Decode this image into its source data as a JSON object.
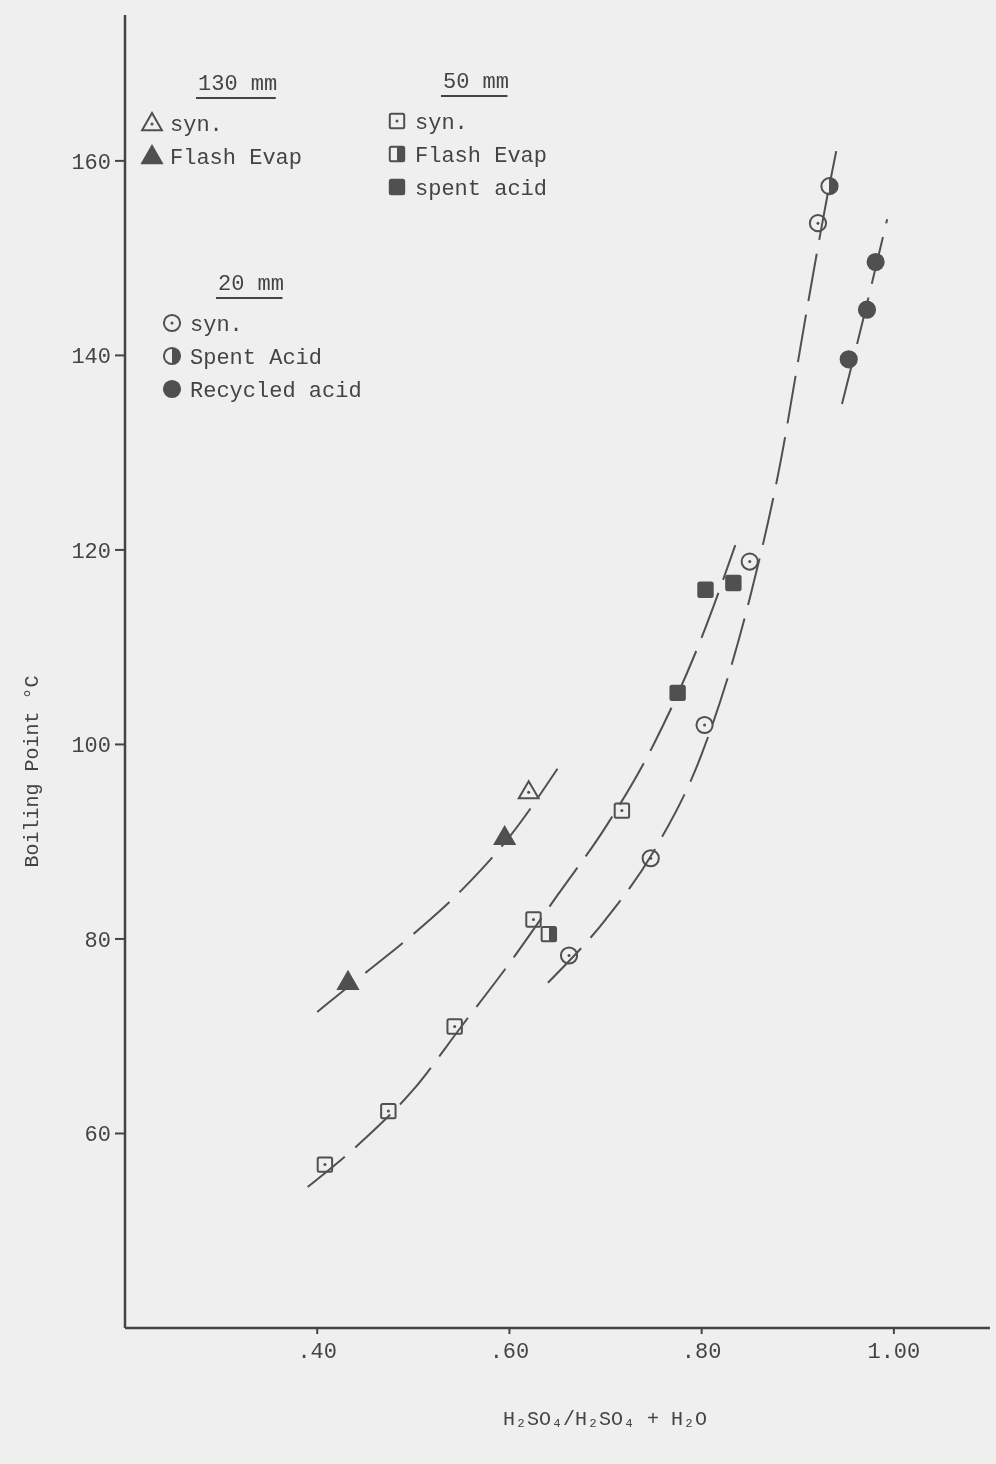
{
  "chart_data": {
    "type": "scatter",
    "xlabel": "H₂SO₄/H₂SO₄ + H₂O",
    "ylabel": "Boiling Point °C",
    "xlim": [
      0.2,
      1.1
    ],
    "ylim": [
      40,
      175
    ],
    "xticks": [
      {
        "value": 0.4,
        "label": ".40"
      },
      {
        "value": 0.6,
        "label": ".60"
      },
      {
        "value": 0.8,
        "label": ".80"
      },
      {
        "value": 1.0,
        "label": "1.00"
      }
    ],
    "yticks": [
      60,
      80,
      100,
      120,
      140,
      160
    ],
    "grid": false,
    "legend": "top left",
    "annotations": [
      "130 mm",
      "50 mm",
      "20 mm"
    ],
    "series": [
      {
        "name": "syn.",
        "marker": "triangle",
        "color": "#505050",
        "x": [
          0.62
        ],
        "values": [
          95.2
        ]
      },
      {
        "name": "Flash Evap",
        "marker": "triangle",
        "color": "#505050",
        "x": [
          0.432,
          0.595
        ],
        "values": [
          75.6,
          90.5
        ]
      },
      {
        "name": "syn.",
        "marker": "square",
        "color": "#505050",
        "x": [
          0.408,
          0.474,
          0.543,
          0.625,
          0.717
        ],
        "values": [
          56.8,
          62.3,
          71.0,
          82.0,
          93.2
        ]
      },
      {
        "name": "Flash Evap",
        "marker": "square",
        "color": "#505050",
        "x": [
          0.641
        ],
        "values": [
          80.5
        ]
      },
      {
        "name": "spent acid",
        "marker": "square",
        "color": "#505050",
        "x": [
          0.775,
          0.804,
          0.833
        ],
        "values": [
          105.3,
          115.9,
          116.6
        ]
      },
      {
        "name": "syn.",
        "marker": "circle",
        "color": "#505050",
        "x": [
          0.662,
          0.747,
          0.803,
          0.85,
          0.921
        ],
        "values": [
          78.3,
          88.3,
          102.0,
          118.8,
          153.6
        ]
      },
      {
        "name": "Spent Acid",
        "marker": "circle",
        "color": "#505050",
        "x": [
          0.933
        ],
        "values": [
          157.4
        ]
      },
      {
        "name": "Recycled acid",
        "marker": "circle",
        "color": "#505050",
        "x": [
          0.953,
          0.972,
          0.981
        ],
        "values": [
          139.6,
          144.7,
          149.6
        ]
      },
      {
        "type": "line",
        "line_style": "dashed",
        "color": "#505050",
        "x": [
          0.4,
          0.45,
          0.5,
          0.55,
          0.6,
          0.65
        ],
        "values": [
          72.5,
          76.5,
          80.5,
          85,
          90.5,
          97.5
        ]
      },
      {
        "type": "line",
        "line_style": "dashed",
        "color": "#505050",
        "x": [
          0.39,
          0.45,
          0.5,
          0.55,
          0.6,
          0.65,
          0.7,
          0.75,
          0.8,
          0.835
        ],
        "values": [
          54.5,
          59.5,
          64.5,
          71,
          77.5,
          84.5,
          91.5,
          100,
          111,
          120.5
        ]
      },
      {
        "type": "line",
        "line_style": "dashed",
        "color": "#505050",
        "x": [
          0.64,
          0.7,
          0.75,
          0.8,
          0.85,
          0.88,
          0.91,
          0.93,
          0.94
        ],
        "values": [
          75.5,
          82,
          89,
          99,
          115,
          128,
          145,
          156,
          161
        ]
      },
      {
        "type": "line",
        "line_style": "dashed",
        "color": "#505050",
        "x": [
          0.946,
          0.97,
          0.993
        ],
        "values": [
          135,
          144.5,
          154
        ]
      }
    ]
  }
}
